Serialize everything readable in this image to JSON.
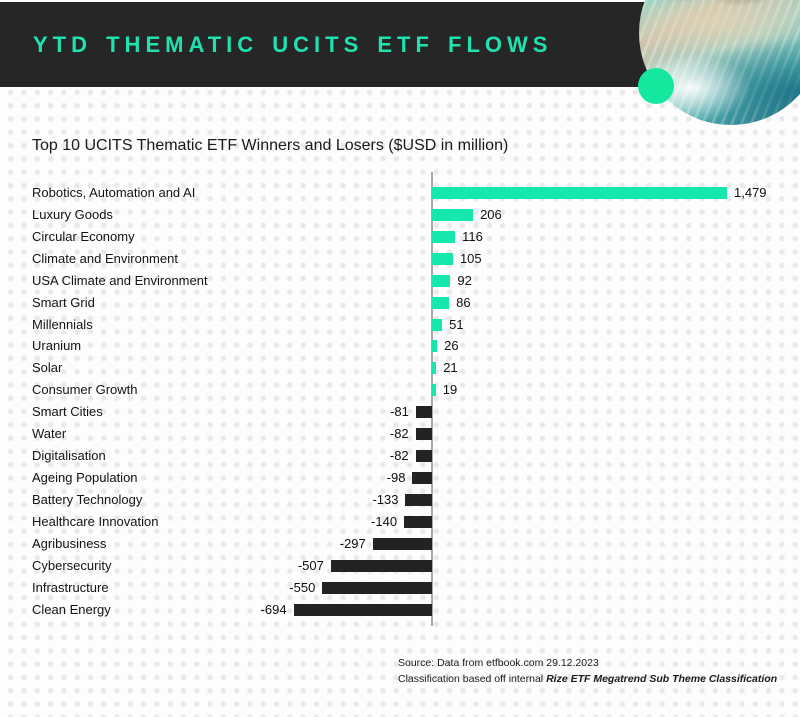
{
  "header": {
    "title": "YTD THEMATIC UCITS ETF FLOWS",
    "bg_color": "#262626",
    "accent_color": "#1fe2ae"
  },
  "decor": {
    "photo_circle": "teal-water-over-rocks-photo",
    "green_dot_color": "#15e79f"
  },
  "chart_data": {
    "type": "bar",
    "orientation": "horizontal",
    "title": "Top 10 UCITS Thematic ETF Winners and Losers ($USD in million)",
    "categories": [
      "Robotics, Automation and AI",
      "Luxury Goods",
      "Circular Economy",
      "Climate and Environment",
      "USA Climate and Environment",
      "Smart Grid",
      "Millennials",
      "Uranium",
      "Solar",
      "Consumer Growth",
      "Smart Cities",
      "Water",
      "Digitalisation",
      "Ageing Population",
      "Battery Technology",
      "Healthcare Innovation",
      "Agribusiness",
      "Cybersecurity",
      "Infrastructure",
      "Clean Energy"
    ],
    "values": [
      1479,
      206,
      116,
      105,
      92,
      86,
      51,
      26,
      21,
      19,
      -81,
      -82,
      -82,
      -98,
      -133,
      -140,
      -297,
      -507,
      -550,
      -694
    ],
    "value_labels": [
      "1,479",
      "206",
      "116",
      "105",
      "92",
      "86",
      "51",
      "26",
      "21",
      "19",
      "-81",
      "-82",
      "-82",
      "-98",
      "-133",
      "-140",
      "-297",
      "-507",
      "-550",
      "-694"
    ],
    "positive_color": "#16e7ac",
    "negative_color": "#232323",
    "xlim": [
      -750,
      1550
    ],
    "grid": false,
    "legend": false,
    "zero_axis": true
  },
  "footer": {
    "line1": "Source: Data from etfbook.com 29.12.2023",
    "line2_regular": "Classification based off internal ",
    "line2_emphasis": "Rize ETF Megatrend Sub Theme Classification"
  }
}
